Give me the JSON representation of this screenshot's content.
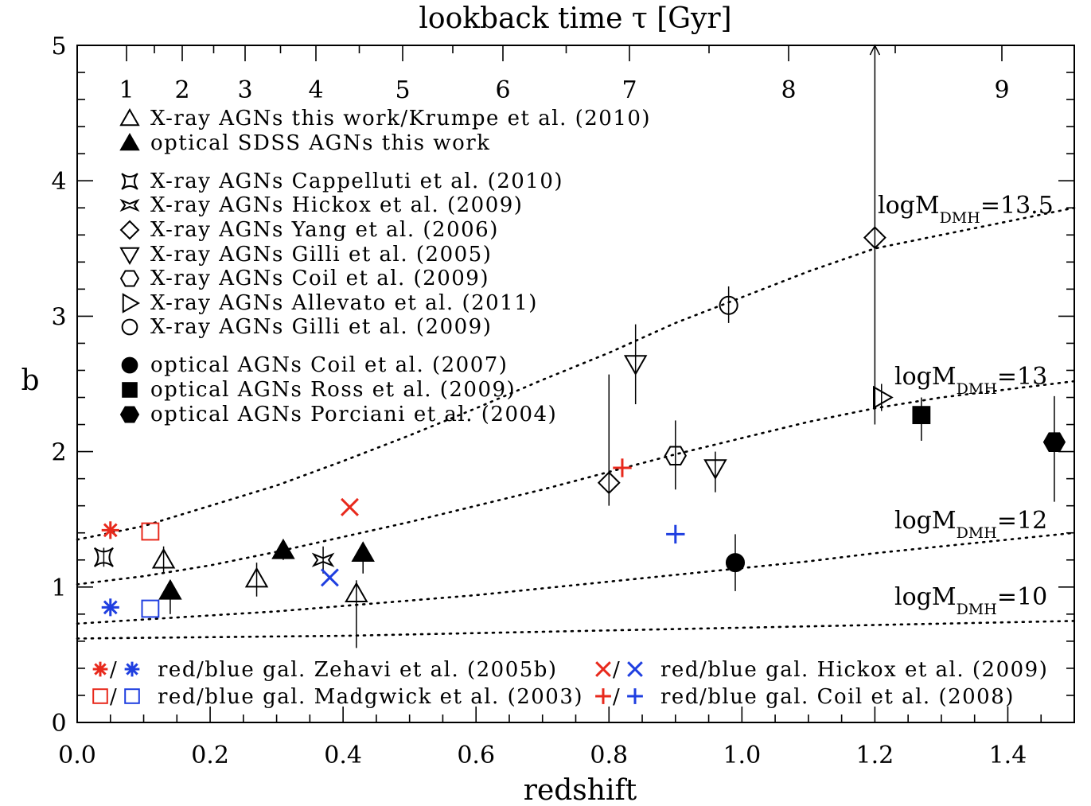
{
  "chart_data": {
    "type": "scatter",
    "xlabel": "redshift",
    "ylabel": "b",
    "top_xlabel": "lookback time τ [Gyr]",
    "xlim": [
      0.0,
      1.5
    ],
    "ylim": [
      0,
      5
    ],
    "x_ticks": [
      {
        "value": 0.0,
        "label": "0.0"
      },
      {
        "value": 0.2,
        "label": "0.2"
      },
      {
        "value": 0.4,
        "label": "0.4"
      },
      {
        "value": 0.6,
        "label": "0.6"
      },
      {
        "value": 0.8,
        "label": "0.8"
      },
      {
        "value": 1.0,
        "label": "1.0"
      },
      {
        "value": 1.2,
        "label": "1.2"
      },
      {
        "value": 1.4,
        "label": "1.4"
      }
    ],
    "y_ticks": [
      {
        "value": 0,
        "label": "0"
      },
      {
        "value": 1,
        "label": "1"
      },
      {
        "value": 2,
        "label": "2"
      },
      {
        "value": 3,
        "label": "3"
      },
      {
        "value": 4,
        "label": "4"
      },
      {
        "value": 5,
        "label": "5"
      }
    ],
    "top_ticks": [
      {
        "value": 1,
        "label": "1"
      },
      {
        "value": 2,
        "label": "2"
      },
      {
        "value": 3,
        "label": "3"
      },
      {
        "value": 4,
        "label": "4"
      },
      {
        "value": 5,
        "label": "5"
      },
      {
        "value": 6,
        "label": "6"
      },
      {
        "value": 7,
        "label": "7"
      },
      {
        "value": 8,
        "label": "8"
      },
      {
        "value": 9,
        "label": "9"
      }
    ],
    "grid": false,
    "curves": [
      {
        "main": "logM",
        "sub": "DMH",
        "value": "=13.5",
        "points": [
          [
            0,
            1.35
          ],
          [
            0.1,
            1.45
          ],
          [
            0.2,
            1.6
          ],
          [
            0.3,
            1.75
          ],
          [
            0.4,
            1.93
          ],
          [
            0.5,
            2.12
          ],
          [
            0.6,
            2.32
          ],
          [
            0.7,
            2.53
          ],
          [
            0.8,
            2.73
          ],
          [
            0.9,
            2.95
          ],
          [
            1.0,
            3.14
          ],
          [
            1.1,
            3.33
          ],
          [
            1.2,
            3.5
          ],
          [
            1.3,
            3.6
          ],
          [
            1.4,
            3.7
          ],
          [
            1.5,
            3.8
          ]
        ]
      },
      {
        "main": "logM",
        "sub": "DMH",
        "value": "=13",
        "points": [
          [
            0,
            1.02
          ],
          [
            0.1,
            1.08
          ],
          [
            0.2,
            1.16
          ],
          [
            0.3,
            1.26
          ],
          [
            0.4,
            1.37
          ],
          [
            0.5,
            1.48
          ],
          [
            0.6,
            1.6
          ],
          [
            0.7,
            1.72
          ],
          [
            0.8,
            1.85
          ],
          [
            0.9,
            1.98
          ],
          [
            1.0,
            2.1
          ],
          [
            1.1,
            2.22
          ],
          [
            1.2,
            2.32
          ],
          [
            1.3,
            2.4
          ],
          [
            1.4,
            2.46
          ],
          [
            1.5,
            2.52
          ]
        ]
      },
      {
        "main": "logM",
        "sub": "DMH",
        "value": "=12",
        "points": [
          [
            0,
            0.73
          ],
          [
            0.1,
            0.76
          ],
          [
            0.2,
            0.79
          ],
          [
            0.3,
            0.82
          ],
          [
            0.4,
            0.86
          ],
          [
            0.5,
            0.9
          ],
          [
            0.6,
            0.94
          ],
          [
            0.7,
            0.99
          ],
          [
            0.8,
            1.04
          ],
          [
            0.9,
            1.09
          ],
          [
            1.0,
            1.14
          ],
          [
            1.1,
            1.19
          ],
          [
            1.2,
            1.25
          ],
          [
            1.3,
            1.3
          ],
          [
            1.4,
            1.35
          ],
          [
            1.5,
            1.4
          ]
        ]
      },
      {
        "main": "logM",
        "sub": "DMH",
        "value": "=10",
        "points": [
          [
            0,
            0.62
          ],
          [
            0.1,
            0.625
          ],
          [
            0.2,
            0.63
          ],
          [
            0.3,
            0.635
          ],
          [
            0.4,
            0.64
          ],
          [
            0.5,
            0.65
          ],
          [
            0.6,
            0.66
          ],
          [
            0.7,
            0.67
          ],
          [
            0.8,
            0.68
          ],
          [
            0.9,
            0.69
          ],
          [
            1.0,
            0.7
          ],
          [
            1.1,
            0.71
          ],
          [
            1.2,
            0.72
          ],
          [
            1.3,
            0.73
          ],
          [
            1.4,
            0.74
          ],
          [
            1.5,
            0.75
          ]
        ]
      }
    ],
    "series": [
      {
        "name": "X-ray AGNs this work/Krumpe et al. (2010)",
        "marker": "triangle",
        "fill": "none",
        "color": "#000000",
        "points": [
          {
            "x": 0.13,
            "y": 1.2,
            "lo": 1.1,
            "hi": 1.3
          },
          {
            "x": 0.27,
            "y": 1.06,
            "lo": 0.93,
            "hi": 1.18
          },
          {
            "x": 0.42,
            "y": 0.95,
            "lo": 0.55,
            "hi": 1.05
          }
        ]
      },
      {
        "name": "optical SDSS AGNs this work",
        "marker": "triangle",
        "fill": "solid",
        "color": "#000000",
        "points": [
          {
            "x": 0.14,
            "y": 0.97,
            "lo": 0.8,
            "hi": 1.05
          },
          {
            "x": 0.31,
            "y": 1.27,
            "lo": 1.2,
            "hi": 1.32
          },
          {
            "x": 0.43,
            "y": 1.25,
            "lo": 1.1,
            "hi": 1.32
          }
        ]
      },
      {
        "name": "X-ray AGNs Cappelluti et al. (2010)",
        "marker": "star4",
        "fill": "none",
        "color": "#000000",
        "points": [
          {
            "x": 0.04,
            "y": 1.22,
            "lo": 1.15,
            "hi": 1.29
          }
        ]
      },
      {
        "name": "X-ray AGNs Hickox et al. (2009)",
        "marker": "hicksym",
        "fill": "none",
        "color": "#000000",
        "points": [
          {
            "x": 0.37,
            "y": 1.2,
            "lo": 1.1,
            "hi": 1.3
          }
        ]
      },
      {
        "name": "X-ray AGNs Yang et al. (2006)",
        "marker": "diamond",
        "fill": "none",
        "color": "#000000",
        "points": [
          {
            "x": 0.8,
            "y": 1.77,
            "lo": 1.6,
            "hi": 2.57
          },
          {
            "x": 1.2,
            "y": 3.58,
            "lo": 2.2,
            "hi": 5.0
          }
        ]
      },
      {
        "name": "X-ray AGNs Gilli et al. (2005)",
        "marker": "triangle-down",
        "fill": "none",
        "color": "#000000",
        "points": [
          {
            "x": 0.84,
            "y": 2.65,
            "lo": 2.35,
            "hi": 2.94
          },
          {
            "x": 0.96,
            "y": 1.88,
            "lo": 1.7,
            "hi": 2.0
          }
        ]
      },
      {
        "name": "X-ray AGNs Coil et al. (2009)",
        "marker": "hexagon",
        "fill": "none",
        "color": "#000000",
        "points": [
          {
            "x": 0.9,
            "y": 1.97,
            "lo": 1.72,
            "hi": 2.23
          }
        ]
      },
      {
        "name": "X-ray AGNs Allevato et al. (2011)",
        "marker": "triangle-right",
        "fill": "none",
        "color": "#000000",
        "points": [
          {
            "x": 1.21,
            "y": 2.4,
            "lo": 2.3,
            "hi": 2.5
          }
        ]
      },
      {
        "name": "X-ray AGNs Gilli et al. (2009)",
        "marker": "circle",
        "fill": "none",
        "color": "#000000",
        "points": [
          {
            "x": 0.98,
            "y": 3.08,
            "lo": 2.95,
            "hi": 3.22
          }
        ]
      },
      {
        "name": "optical AGNs Coil et al. (2007)",
        "marker": "circle",
        "fill": "solid",
        "color": "#000000",
        "points": [
          {
            "x": 0.99,
            "y": 1.18,
            "lo": 0.97,
            "hi": 1.39
          }
        ]
      },
      {
        "name": "optical AGNs Ross et al. (2009)",
        "marker": "square",
        "fill": "solid",
        "color": "#000000",
        "points": [
          {
            "x": 1.27,
            "y": 2.27,
            "lo": 2.08,
            "hi": 2.4
          }
        ]
      },
      {
        "name": "optical AGNs Porciani et al. (2004)",
        "marker": "hexagon",
        "fill": "solid",
        "color": "#000000",
        "points": [
          {
            "x": 1.47,
            "y": 2.07,
            "lo": 1.63,
            "hi": 2.41
          }
        ]
      },
      {
        "name": "red gal. Zehavi et al. (2005b)",
        "marker": "asterisk",
        "fill": "none",
        "color": "#e8291c",
        "points": [
          {
            "x": 0.05,
            "y": 1.42
          }
        ]
      },
      {
        "name": "blue gal. Zehavi et al. (2005b)",
        "marker": "asterisk",
        "fill": "none",
        "color": "#1f3fe0",
        "points": [
          {
            "x": 0.05,
            "y": 0.85
          }
        ]
      },
      {
        "name": "red gal. Madgwick et al. (2003)",
        "marker": "square",
        "fill": "none",
        "color": "#e8291c",
        "points": [
          {
            "x": 0.11,
            "y": 1.41
          }
        ]
      },
      {
        "name": "blue gal. Madgwick et al. (2003)",
        "marker": "square",
        "fill": "none",
        "color": "#1f3fe0",
        "points": [
          {
            "x": 0.11,
            "y": 0.84
          }
        ]
      },
      {
        "name": "red gal. Hickox et al. (2009)",
        "marker": "x",
        "fill": "none",
        "color": "#e8291c",
        "points": [
          {
            "x": 0.41,
            "y": 1.59
          }
        ]
      },
      {
        "name": "blue gal. Hickox et al. (2009)",
        "marker": "x",
        "fill": "none",
        "color": "#1f3fe0",
        "points": [
          {
            "x": 0.38,
            "y": 1.07
          }
        ]
      },
      {
        "name": "red gal. Coil et al. (2008)",
        "marker": "plus",
        "fill": "none",
        "color": "#e8291c",
        "points": [
          {
            "x": 0.82,
            "y": 1.88
          }
        ]
      },
      {
        "name": "blue gal. Coil et al. (2008)",
        "marker": "plus",
        "fill": "none",
        "color": "#1f3fe0",
        "points": [
          {
            "x": 0.9,
            "y": 1.39
          }
        ]
      }
    ],
    "legend_top": [
      {
        "marker": "triangle",
        "fill": "none",
        "color": "#000000",
        "text": "X-ray AGNs this work/Krumpe et al. (2010)"
      },
      {
        "marker": "triangle",
        "fill": "solid",
        "color": "#000000",
        "text": "optical SDSS AGNs this work"
      },
      {
        "marker": "star4",
        "fill": "none",
        "color": "#000000",
        "text": "X-ray AGNs Cappelluti et al. (2010)"
      },
      {
        "marker": "hicksym",
        "fill": "none",
        "color": "#000000",
        "text": "X-ray AGNs Hickox et al. (2009)"
      },
      {
        "marker": "diamond",
        "fill": "none",
        "color": "#000000",
        "text": "X-ray AGNs Yang et al. (2006)"
      },
      {
        "marker": "triangle-down",
        "fill": "none",
        "color": "#000000",
        "text": "X-ray AGNs Gilli et al. (2005)"
      },
      {
        "marker": "hexagon",
        "fill": "none",
        "color": "#000000",
        "text": "X-ray AGNs Coil et al. (2009)"
      },
      {
        "marker": "triangle-right",
        "fill": "none",
        "color": "#000000",
        "text": "X-ray AGNs Allevato et al. (2011)"
      },
      {
        "marker": "circle",
        "fill": "none",
        "color": "#000000",
        "text": "X-ray AGNs Gilli et al. (2009)"
      },
      {
        "marker": "circle",
        "fill": "solid",
        "color": "#000000",
        "text": "optical AGNs Coil et al. (2007)"
      },
      {
        "marker": "square",
        "fill": "solid",
        "color": "#000000",
        "text": "optical AGNs Ross et al. (2009)"
      },
      {
        "marker": "hexagon",
        "fill": "solid",
        "color": "#000000",
        "text": "optical AGNs Porciani et al. (2004)"
      }
    ],
    "legend_bottom": [
      {
        "marker": "asterisk",
        "colors": [
          "#e8291c",
          "#1f3fe0"
        ],
        "text": "red/blue gal. Zehavi et al. (2005b)"
      },
      {
        "marker": "square",
        "colors": [
          "#e8291c",
          "#1f3fe0"
        ],
        "text": "red/blue gal. Madgwick et al. (2003)"
      },
      {
        "marker": "x",
        "colors": [
          "#e8291c",
          "#1f3fe0"
        ],
        "text": "red/blue gal. Hickox et al. (2009)"
      },
      {
        "marker": "plus",
        "colors": [
          "#e8291c",
          "#1f3fe0"
        ],
        "text": "red/blue gal. Coil et al. (2008)"
      }
    ]
  }
}
